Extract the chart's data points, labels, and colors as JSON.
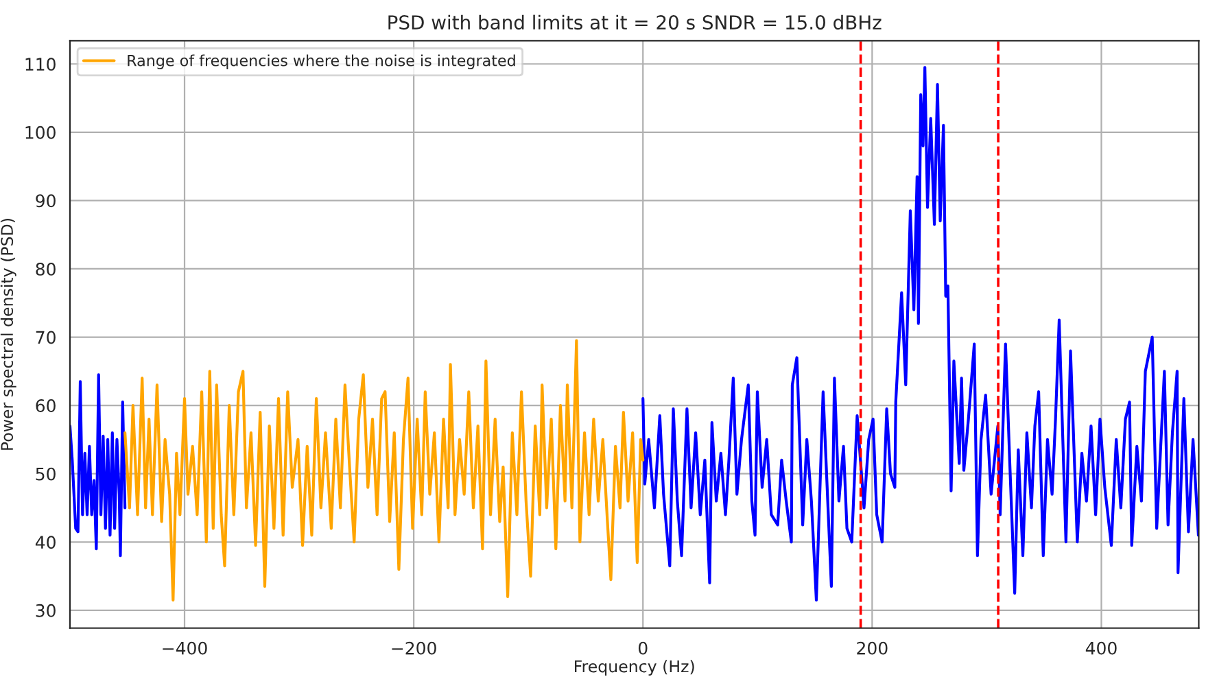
{
  "chart_data": {
    "type": "line",
    "title": "PSD with band limits at it = 20 s SNDR = 15.0 dBHz",
    "xlabel": "Frequency (Hz)",
    "ylabel": "Power spectral density (PSD)",
    "xlim": [
      -500,
      485
    ],
    "xticks": [
      -400,
      -200,
      0,
      200,
      400
    ],
    "ylim": [
      27.4,
      113.4
    ],
    "yticks": [
      30,
      40,
      50,
      60,
      70,
      80,
      90,
      100,
      110
    ],
    "grid": true,
    "legend": "top left",
    "line_style": "solid",
    "marker": "none",
    "series": [
      {
        "color": "#0000ff",
        "x": [
          -500,
          -498,
          -495,
          -493,
          -491,
          -489,
          -487,
          -485,
          -483,
          -481,
          -479,
          -477,
          -475,
          -473,
          -471,
          -469,
          -467,
          -465,
          -463,
          -461,
          -459,
          -457,
          -456,
          -454,
          -452,
          -450,
          0,
          1.6,
          5,
          10,
          14.7,
          18,
          23.4,
          26.5,
          30,
          33.7,
          38.4,
          42,
          46,
          50,
          54,
          58.2,
          60.2,
          64,
          68,
          72,
          75,
          78.8,
          82,
          86,
          91.9,
          95,
          97.8,
          99.8,
          104,
          108,
          112,
          117.6,
          121,
          125,
          129.5,
          130.3,
          134.3,
          139.4,
          143,
          147,
          151.3,
          157.2,
          164.4,
          167.1,
          171,
          175,
          178,
          182.2,
          186.9,
          192.9,
          197,
          200.8,
          204,
          208.7,
          212.7,
          216,
          219.8,
          220.6,
          225.7,
          229.3,
          233.3,
          236.4,
          239.2,
          240.4,
          242.4,
          244.4,
          246,
          248.3,
          251.1,
          254.3,
          257,
          259.4,
          262.2,
          264.2,
          266.1,
          268.9,
          271.3,
          276,
          278,
          280,
          284,
          289.1,
          291.9,
          295,
          299,
          303.8,
          309.7,
          311.7,
          316.4,
          320,
          324.4,
          327.5,
          331.5,
          335,
          339,
          342,
          345.3,
          349.3,
          353,
          357,
          360,
          363.2,
          369.1,
          373.1,
          379,
          383,
          387,
          391,
          395,
          398.8,
          403,
          408.7,
          413,
          417,
          421,
          424.6,
          426.5,
          431,
          435,
          438.4,
          444.4,
          448.3,
          455,
          458.2,
          462,
          466.1,
          466.9,
          472,
          476,
          480,
          484.7
        ],
        "values": [
          57,
          52,
          42,
          41.5,
          63.5,
          44,
          53,
          44,
          54,
          44,
          49,
          39,
          64.5,
          44,
          55.5,
          42,
          55,
          41,
          56,
          42,
          55,
          47,
          38,
          60.5,
          45,
          null,
          61,
          48.5,
          55,
          45,
          58.5,
          47,
          36.5,
          59.5,
          46,
          38,
          59.5,
          45,
          56,
          44,
          52,
          34,
          57.5,
          46,
          53,
          44,
          52,
          64,
          47,
          55,
          63,
          46,
          41,
          62,
          48,
          55,
          44,
          42.5,
          52,
          46,
          40,
          63,
          67,
          42.5,
          55,
          46,
          31.5,
          62,
          33.5,
          64,
          46,
          54,
          42,
          40,
          58.5,
          45,
          55,
          58,
          44,
          40,
          59.5,
          50,
          48,
          60.5,
          76.5,
          63,
          88.5,
          74,
          93.5,
          72,
          105.5,
          98,
          109.5,
          89,
          102,
          86.5,
          107,
          87,
          101,
          76,
          77.5,
          47.5,
          66.5,
          51.5,
          64,
          50.5,
          58,
          69,
          38,
          55,
          61.5,
          47,
          57,
          44,
          69,
          52,
          32.5,
          53.5,
          38,
          56,
          45,
          57,
          62,
          38,
          55,
          47,
          58,
          72.5,
          40,
          68,
          40,
          53,
          46,
          57,
          44,
          58,
          48,
          39.5,
          55,
          45,
          58,
          60.5,
          39.5,
          54,
          46,
          65,
          70,
          42,
          65,
          42.5,
          56,
          65,
          35.5,
          61,
          41.5,
          55,
          41
        ]
      },
      {
        "name": "Range of frequencies where the noise is integrated",
        "color": "#ffa500",
        "x": [
          -452,
          -448,
          -445,
          -441,
          -437,
          -434,
          -431,
          -428,
          -424,
          -420,
          -417,
          -413,
          -410,
          -407,
          -404,
          -400,
          -397,
          -393,
          -389,
          -385,
          -381,
          -378,
          -375,
          -372,
          -368,
          -365,
          -361,
          -357,
          -353,
          -349,
          -346,
          -342,
          -338,
          -334,
          -330,
          -326,
          -322,
          -318,
          -314,
          -310,
          -306,
          -301,
          -297,
          -293,
          -289,
          -285,
          -281,
          -277,
          -272,
          -268,
          -264,
          -260,
          -256,
          -252,
          -248,
          -244,
          -240,
          -236,
          -232,
          -228,
          -225,
          -221,
          -217,
          -213,
          -209,
          -205,
          -201,
          -197,
          -193,
          -190,
          -186,
          -182,
          -178,
          -174,
          -170,
          -168,
          -164,
          -160,
          -156,
          -152,
          -148,
          -144,
          -140,
          -137,
          -133,
          -129,
          -125,
          -122,
          -118,
          -114,
          -110,
          -106,
          -102,
          -98,
          -94,
          -90,
          -88,
          -84,
          -80,
          -76,
          -72,
          -68,
          -66,
          -62,
          -58,
          -55,
          -51,
          -47,
          -43,
          -39,
          -35,
          -31,
          -28,
          -24,
          -20,
          -17,
          -13,
          -9,
          -5,
          -2,
          0
        ],
        "values": [
          56,
          45,
          60,
          44,
          64,
          45,
          58,
          44,
          63,
          43,
          55,
          47,
          31.5,
          53,
          44,
          61,
          47,
          54,
          44,
          62,
          40,
          65,
          42,
          63,
          44,
          36.5,
          60,
          44,
          62,
          65,
          45,
          56,
          39.5,
          59,
          33.5,
          57,
          42,
          61,
          41,
          62,
          48,
          55,
          39.5,
          54,
          41,
          61,
          45,
          56,
          42,
          58,
          45,
          63,
          51,
          40,
          58,
          64.5,
          48,
          58,
          44,
          61,
          62,
          43,
          56,
          36,
          55,
          64,
          42,
          58,
          44,
          62,
          47,
          56,
          40,
          58,
          45,
          66,
          44,
          55,
          47,
          62,
          45,
          57,
          39,
          66.5,
          44,
          58,
          43,
          51,
          32,
          56,
          44,
          62,
          46,
          35,
          57,
          44,
          63,
          45,
          58,
          39,
          60,
          46,
          63,
          45,
          69.5,
          40,
          56,
          44,
          58,
          46,
          55,
          43,
          34.5,
          54,
          45,
          59,
          46,
          56,
          37,
          55,
          52
        ]
      }
    ],
    "ref_lines": [
      {
        "axis": "x",
        "value": 190,
        "color": "#ff0000",
        "line_style": "dashed"
      },
      {
        "axis": "x",
        "value": 310,
        "color": "#ff0000",
        "line_style": "dashed"
      }
    ]
  }
}
